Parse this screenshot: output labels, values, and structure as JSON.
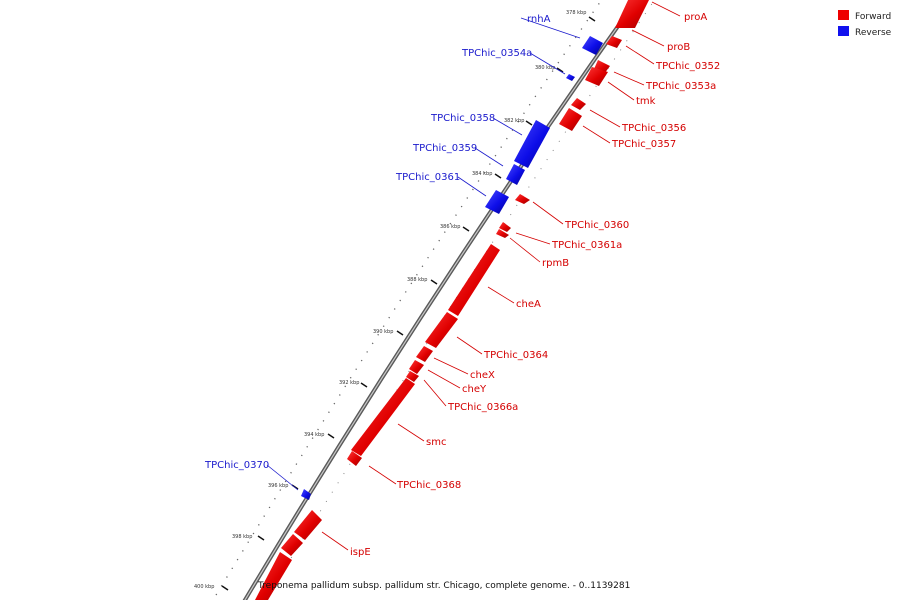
{
  "legend": {
    "forward_label": "Forward",
    "reverse_label": "Reverse",
    "forward_color": "#ee0000",
    "reverse_color": "#1111ee"
  },
  "caption": "Treponema pallidum subsp. pallidum str. Chicago, complete genome. - 0..1139281",
  "ticks": [
    "378 kbp",
    "380 kbp",
    "382 kbp",
    "384 kbp",
    "386 kbp",
    "388 kbp",
    "390 kbp",
    "392 kbp",
    "394 kbp",
    "396 kbp",
    "398 kbp",
    "400 kbp"
  ],
  "features": [
    {
      "name": "proA",
      "strand": "forward"
    },
    {
      "name": "rnhA",
      "strand": "reverse"
    },
    {
      "name": "proB",
      "strand": "forward"
    },
    {
      "name": "TPChic_0354a",
      "strand": "reverse"
    },
    {
      "name": "TPChic_0352",
      "strand": "forward"
    },
    {
      "name": "TPChic_0353a",
      "strand": "forward"
    },
    {
      "name": "tmk",
      "strand": "forward"
    },
    {
      "name": "TPChic_0358",
      "strand": "reverse"
    },
    {
      "name": "TPChic_0356",
      "strand": "forward"
    },
    {
      "name": "TPChic_0357",
      "strand": "forward"
    },
    {
      "name": "TPChic_0359",
      "strand": "reverse"
    },
    {
      "name": "TPChic_0361",
      "strand": "reverse"
    },
    {
      "name": "TPChic_0360",
      "strand": "forward"
    },
    {
      "name": "TPChic_0361a",
      "strand": "forward"
    },
    {
      "name": "rpmB",
      "strand": "forward"
    },
    {
      "name": "cheA",
      "strand": "forward"
    },
    {
      "name": "TPChic_0364",
      "strand": "forward"
    },
    {
      "name": "cheX",
      "strand": "forward"
    },
    {
      "name": "cheY",
      "strand": "forward"
    },
    {
      "name": "TPChic_0366a",
      "strand": "forward"
    },
    {
      "name": "smc",
      "strand": "forward"
    },
    {
      "name": "TPChic_0370",
      "strand": "reverse"
    },
    {
      "name": "TPChic_0368",
      "strand": "forward"
    },
    {
      "name": "ispE",
      "strand": "forward"
    }
  ]
}
